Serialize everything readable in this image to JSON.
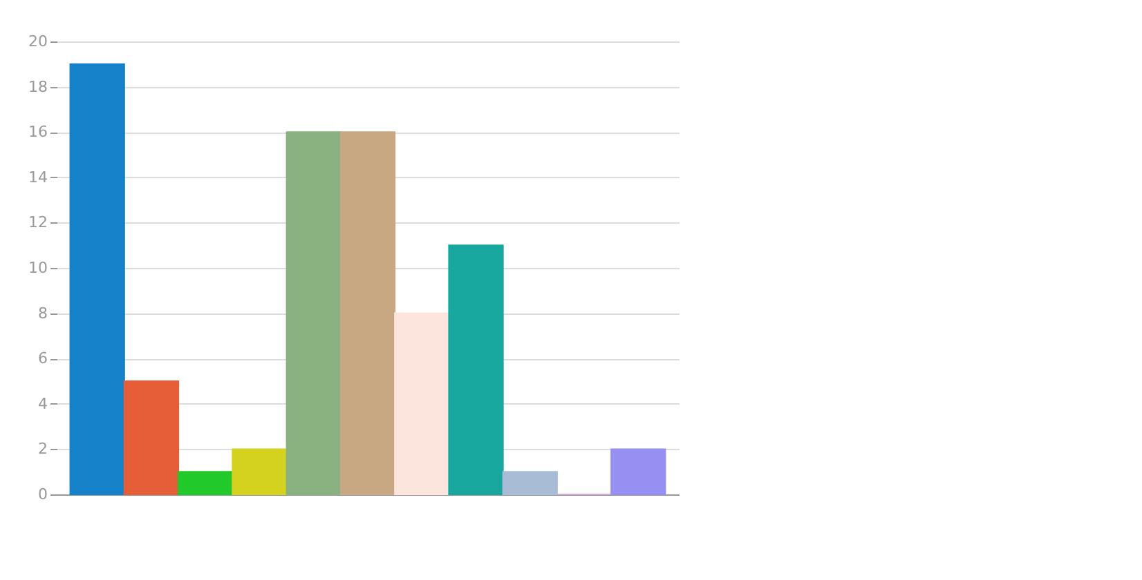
{
  "chart_data": {
    "type": "bar",
    "categories": [
      null,
      null,
      null,
      null,
      null,
      null,
      null,
      null,
      null,
      null,
      null
    ],
    "values": [
      19,
      5,
      1,
      2,
      16,
      16,
      8,
      11,
      1,
      0,
      2
    ],
    "colors": [
      "#1581c9",
      "#e55e38",
      "#21c92a",
      "#d4d21f",
      "#8ab180",
      "#c8a882",
      "#fbe5dd",
      "#17a79f",
      "#a9bcd6",
      "#d6a6e0",
      "#9590f1"
    ],
    "ylim": [
      0,
      20
    ],
    "yticks": [
      0,
      2,
      4,
      6,
      8,
      10,
      12,
      14,
      16,
      18,
      20
    ],
    "grid": "y"
  }
}
